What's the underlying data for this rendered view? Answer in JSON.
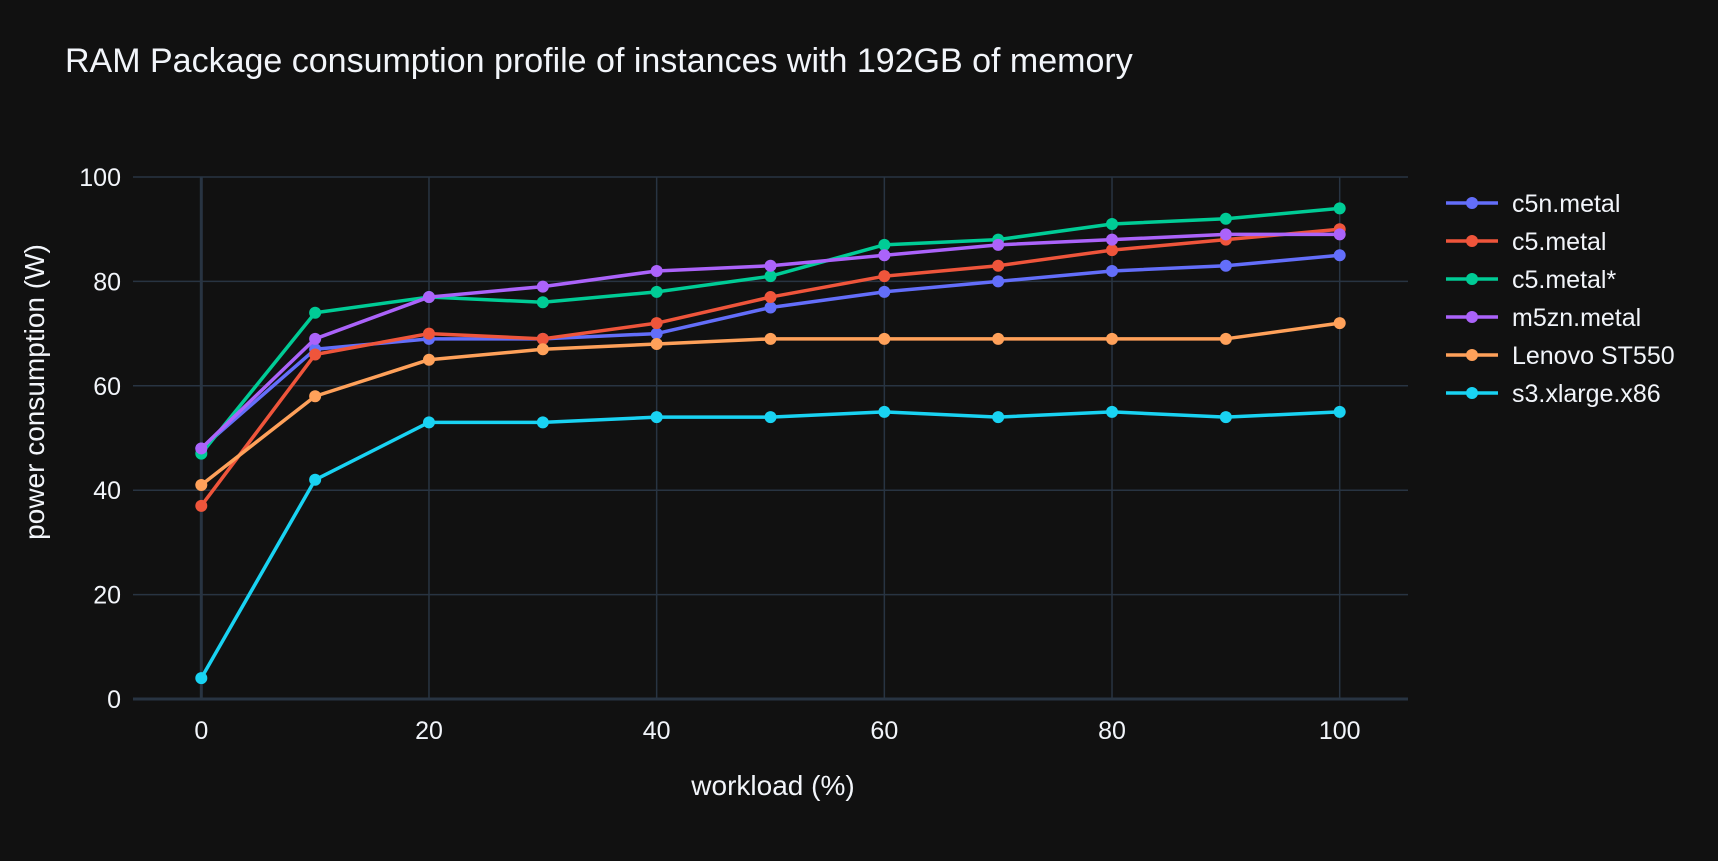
{
  "chart_data": {
    "type": "line",
    "title": "RAM Package consumption profile of instances with 192GB of memory",
    "xlabel": "workload (%)",
    "ylabel": "power consumption (W)",
    "x": [
      0,
      10,
      20,
      30,
      40,
      50,
      60,
      70,
      80,
      90,
      100
    ],
    "xlim": [
      -6,
      106
    ],
    "ylim": [
      0,
      100
    ],
    "x_ticks": [
      0,
      20,
      40,
      60,
      80,
      100
    ],
    "y_ticks": [
      0,
      20,
      40,
      60,
      80,
      100
    ],
    "grid": true,
    "legend_position": "right",
    "series": [
      {
        "name": "c5n.metal",
        "color": "#636efa",
        "values": [
          48,
          67,
          69,
          69,
          70,
          75,
          78,
          80,
          82,
          83,
          85
        ]
      },
      {
        "name": "c5.metal",
        "color": "#ef553b",
        "values": [
          37,
          66,
          70,
          69,
          72,
          77,
          81,
          83,
          86,
          88,
          90
        ]
      },
      {
        "name": "c5.metal*",
        "color": "#00cc96",
        "values": [
          47,
          74,
          77,
          76,
          78,
          81,
          87,
          88,
          91,
          92,
          94
        ]
      },
      {
        "name": "m5zn.metal",
        "color": "#ab63fa",
        "values": [
          48,
          69,
          77,
          79,
          82,
          83,
          85,
          87,
          88,
          89,
          89
        ]
      },
      {
        "name": "Lenovo ST550",
        "color": "#ffa15a",
        "values": [
          41,
          58,
          65,
          67,
          68,
          69,
          69,
          69,
          69,
          69,
          72
        ]
      },
      {
        "name": "s3.xlarge.x86",
        "color": "#19d3f3",
        "values": [
          4,
          42,
          53,
          53,
          54,
          54,
          55,
          54,
          55,
          54,
          55
        ]
      }
    ]
  },
  "style": {
    "background": "#111111",
    "grid_color": "#283442",
    "text_color": "#f2f5fa"
  }
}
